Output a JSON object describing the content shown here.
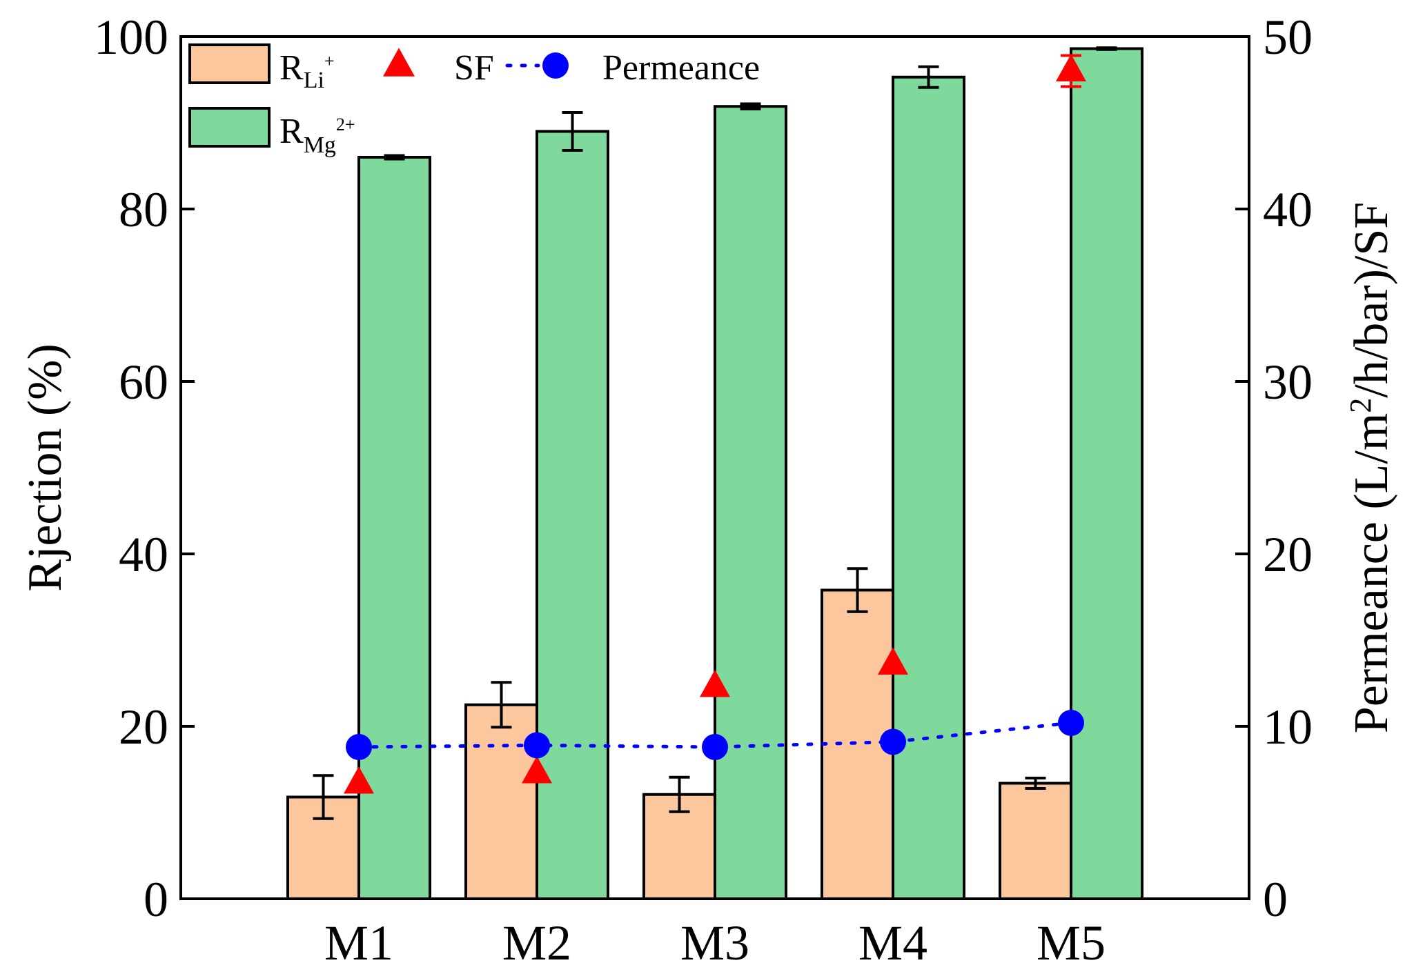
{
  "chart_data": {
    "type": "bar",
    "categories": [
      "M1",
      "M2",
      "M3",
      "M4",
      "M5"
    ],
    "left_axis": {
      "label": "Rjection (%)",
      "ylim": [
        0,
        100
      ],
      "ticks": [
        "0",
        "20",
        "40",
        "60",
        "80",
        "100"
      ]
    },
    "right_axis": {
      "label_parts": {
        "a": "Permeance (L/m",
        "sup": "2",
        "b": "/h/bar)/SF"
      },
      "ylim": [
        0,
        50
      ],
      "ticks": [
        "0",
        "10",
        "20",
        "30",
        "40",
        "50"
      ]
    },
    "series": [
      {
        "name": "R_Li+",
        "type": "bar",
        "axis": "left",
        "color": "#FDC79D",
        "values": [
          11.8,
          22.5,
          12.1,
          35.8,
          13.4
        ],
        "errors": [
          2.5,
          2.6,
          2.0,
          2.5,
          0.6
        ]
      },
      {
        "name": "R_Mg2+",
        "type": "bar",
        "axis": "left",
        "color": "#7FD89C",
        "values": [
          86.0,
          89.0,
          91.9,
          95.3,
          98.6
        ],
        "errors": [
          0.2,
          2.2,
          0.3,
          1.2,
          0.1
        ]
      },
      {
        "name": "SF",
        "type": "scatter",
        "marker": "triangle",
        "axis": "right",
        "color": "#FF0000",
        "values": [
          6.7,
          7.3,
          12.3,
          13.6,
          48.0
        ],
        "errors": [
          0,
          0,
          0,
          0,
          0.9
        ]
      },
      {
        "name": "Permeance",
        "type": "line",
        "marker": "circle",
        "linestyle": "dotted",
        "axis": "right",
        "color": "#0000FF",
        "values": [
          8.8,
          8.9,
          8.8,
          9.1,
          10.2
        ]
      }
    ],
    "legend": {
      "placement": "top-left",
      "entries": [
        {
          "key": "rli",
          "main": "R",
          "sub": "Li",
          "sup": "+"
        },
        {
          "key": "sf",
          "main": "SF"
        },
        {
          "key": "perm",
          "main": "Permeance"
        },
        {
          "key": "rmg",
          "main": "R",
          "sub": "Mg",
          "sup": "2+"
        }
      ]
    }
  }
}
